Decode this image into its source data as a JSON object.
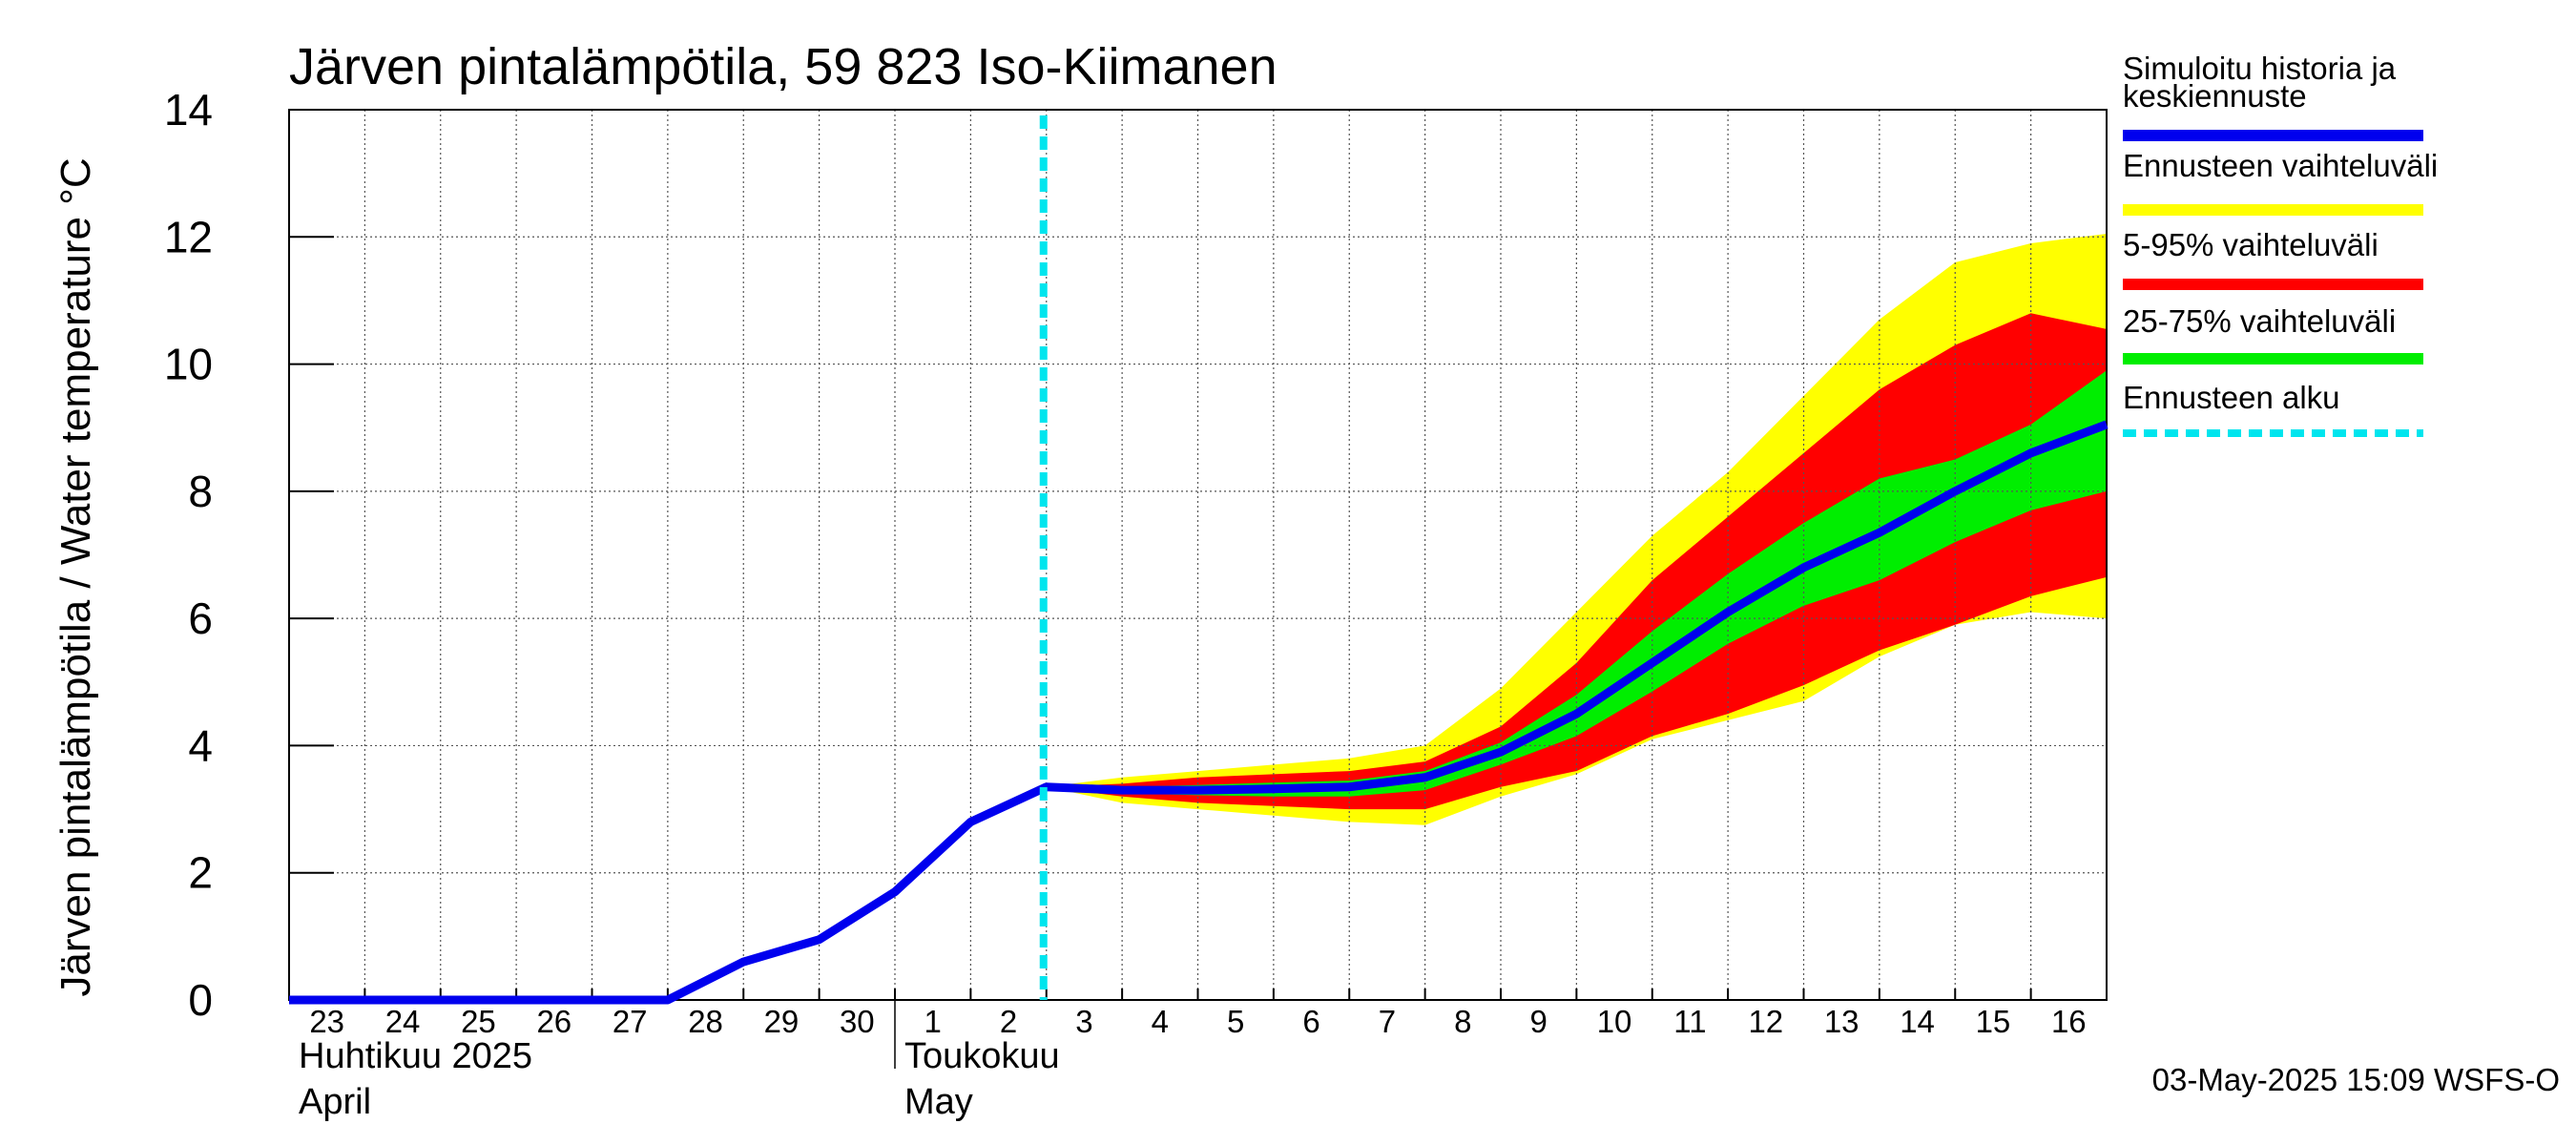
{
  "chart_data": {
    "type": "area",
    "title": "Järven pintalämpötila, 59 823 Iso-Kiimanen",
    "ylabel": "Järven pintalämpötila / Water temperature °C",
    "xlabel": "",
    "ylim": [
      0,
      14
    ],
    "yticks": [
      "0",
      "2",
      "4",
      "6",
      "8",
      "10",
      "12",
      "14"
    ],
    "x_range": [
      "2025-04-23",
      "2025-05-17"
    ],
    "grid": true,
    "day_labels": [
      {
        "date": "2025-04-23",
        "label": "23"
      },
      {
        "date": "2025-04-24",
        "label": "24"
      },
      {
        "date": "2025-04-25",
        "label": "25"
      },
      {
        "date": "2025-04-26",
        "label": "26"
      },
      {
        "date": "2025-04-27",
        "label": "27"
      },
      {
        "date": "2025-04-28",
        "label": "28"
      },
      {
        "date": "2025-04-29",
        "label": "29"
      },
      {
        "date": "2025-04-30",
        "label": "30"
      },
      {
        "date": "2025-05-01",
        "label": "1"
      },
      {
        "date": "2025-05-02",
        "label": "2"
      },
      {
        "date": "2025-05-03",
        "label": "3"
      },
      {
        "date": "2025-05-04",
        "label": "4"
      },
      {
        "date": "2025-05-05",
        "label": "5"
      },
      {
        "date": "2025-05-06",
        "label": "6"
      },
      {
        "date": "2025-05-07",
        "label": "7"
      },
      {
        "date": "2025-05-08",
        "label": "8"
      },
      {
        "date": "2025-05-09",
        "label": "9"
      },
      {
        "date": "2025-05-10",
        "label": "10"
      },
      {
        "date": "2025-05-11",
        "label": "11"
      },
      {
        "date": "2025-05-12",
        "label": "12"
      },
      {
        "date": "2025-05-13",
        "label": "13"
      },
      {
        "date": "2025-05-14",
        "label": "14"
      },
      {
        "date": "2025-05-15",
        "label": "15"
      },
      {
        "date": "2025-05-16",
        "label": "16"
      }
    ],
    "month_labels": [
      {
        "date": "2025-04-23",
        "line1": "Huhtikuu  2025",
        "line2": "April"
      },
      {
        "date": "2025-05-01",
        "line1": "Toukokuu",
        "line2": "May"
      }
    ],
    "forecast_start": "2025-05-03",
    "legend_position": "right",
    "legend": [
      {
        "key": "median",
        "label": "Simuloitu historia ja keskiennuste",
        "lines": [
          "Simuloitu historia ja",
          "keskiennuste"
        ],
        "color": "#0000ee",
        "style": "solid"
      },
      {
        "key": "full",
        "label": "Ennusteen vaihteluväli",
        "lines": [
          "Ennusteen vaihteluväli"
        ],
        "color": "#ffff00",
        "style": "solid"
      },
      {
        "key": "p5_95",
        "label": "5-95% vaihteluväli",
        "lines": [
          "5-95% vaihteluväli"
        ],
        "color": "#ff0000",
        "style": "solid"
      },
      {
        "key": "p25_75",
        "label": "25-75% vaihteluväli",
        "lines": [
          "25-75% vaihteluväli"
        ],
        "color": "#00ee00",
        "style": "solid"
      },
      {
        "key": "start",
        "label": "Ennusteen alku",
        "lines": [
          "Ennusteen alku"
        ],
        "color": "#00e5ee",
        "style": "dashed"
      }
    ],
    "series": [
      {
        "key": "median",
        "x": [
          "2025-04-23",
          "2025-04-24",
          "2025-04-25",
          "2025-04-26",
          "2025-04-27",
          "2025-04-28",
          "2025-04-29",
          "2025-04-30",
          "2025-05-01",
          "2025-05-02",
          "2025-05-03",
          "2025-05-04",
          "2025-05-05",
          "2025-05-06",
          "2025-05-07",
          "2025-05-08",
          "2025-05-09",
          "2025-05-10",
          "2025-05-11",
          "2025-05-12",
          "2025-05-13",
          "2025-05-14",
          "2025-05-15",
          "2025-05-16",
          "2025-05-17"
        ],
        "values": [
          0,
          0,
          0,
          0,
          0,
          0,
          0.6,
          0.95,
          1.7,
          2.8,
          3.35,
          3.3,
          3.3,
          3.32,
          3.35,
          3.5,
          3.9,
          4.5,
          5.3,
          6.1,
          6.8,
          7.35,
          8.0,
          8.6,
          9.05
        ]
      }
    ],
    "bands": [
      {
        "key": "full",
        "x": [
          "2025-05-03",
          "2025-05-04",
          "2025-05-05",
          "2025-05-06",
          "2025-05-07",
          "2025-05-08",
          "2025-05-09",
          "2025-05-10",
          "2025-05-11",
          "2025-05-12",
          "2025-05-13",
          "2025-05-14",
          "2025-05-15",
          "2025-05-16",
          "2025-05-17"
        ],
        "upper": [
          3.35,
          3.5,
          3.6,
          3.7,
          3.8,
          4.0,
          4.9,
          6.1,
          7.3,
          8.3,
          9.5,
          10.7,
          11.6,
          11.9,
          12.05
        ],
        "lower": [
          3.35,
          3.1,
          3.0,
          2.9,
          2.8,
          2.75,
          3.2,
          3.55,
          4.1,
          4.4,
          4.7,
          5.4,
          5.9,
          6.1,
          6.0
        ]
      },
      {
        "key": "p5_95",
        "x": [
          "2025-05-03",
          "2025-05-04",
          "2025-05-05",
          "2025-05-06",
          "2025-05-07",
          "2025-05-08",
          "2025-05-09",
          "2025-05-10",
          "2025-05-11",
          "2025-05-12",
          "2025-05-13",
          "2025-05-14",
          "2025-05-15",
          "2025-05-16",
          "2025-05-17"
        ],
        "upper": [
          3.35,
          3.4,
          3.5,
          3.55,
          3.6,
          3.75,
          4.3,
          5.3,
          6.6,
          7.6,
          8.6,
          9.6,
          10.3,
          10.8,
          10.55
        ],
        "lower": [
          3.35,
          3.2,
          3.1,
          3.05,
          3.0,
          3.0,
          3.35,
          3.6,
          4.15,
          4.5,
          4.95,
          5.5,
          5.9,
          6.35,
          6.65
        ]
      },
      {
        "key": "p25_75",
        "x": [
          "2025-05-03",
          "2025-05-04",
          "2025-05-05",
          "2025-05-06",
          "2025-05-07",
          "2025-05-08",
          "2025-05-09",
          "2025-05-10",
          "2025-05-11",
          "2025-05-12",
          "2025-05-13",
          "2025-05-14",
          "2025-05-15",
          "2025-05-16",
          "2025-05-17"
        ],
        "upper": [
          3.35,
          3.35,
          3.38,
          3.42,
          3.45,
          3.6,
          4.05,
          4.8,
          5.8,
          6.7,
          7.5,
          8.2,
          8.5,
          9.05,
          9.9
        ],
        "lower": [
          3.35,
          3.25,
          3.22,
          3.2,
          3.2,
          3.3,
          3.7,
          4.15,
          4.85,
          5.6,
          6.2,
          6.6,
          7.2,
          7.7,
          8.0
        ]
      }
    ],
    "timestamp": "03-May-2025 15:09 WSFS-O"
  }
}
